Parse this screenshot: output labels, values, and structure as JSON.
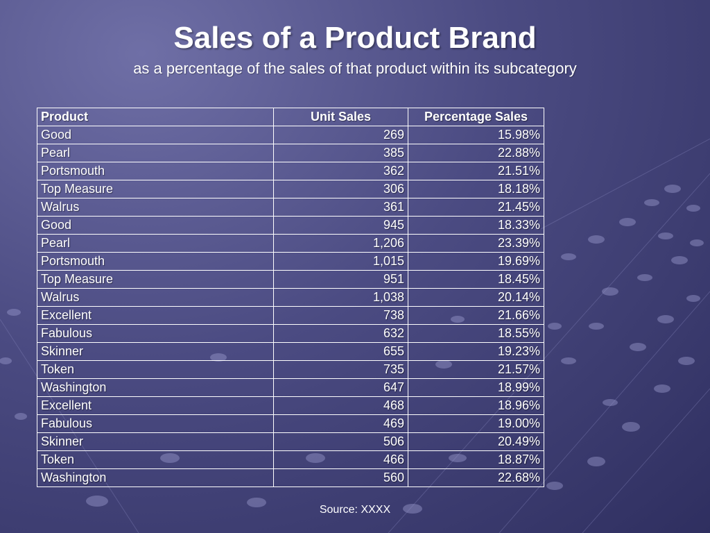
{
  "slide": {
    "title": "Sales of a Product Brand",
    "subtitle": "as a percentage of the sales of that product within its subcategory",
    "source": "Source:  XXXX"
  },
  "table": {
    "headers": [
      "Product",
      "Unit Sales",
      "Percentage Sales"
    ],
    "rows": [
      [
        "Good",
        "269",
        "15.98%"
      ],
      [
        "Pearl",
        "385",
        "22.88%"
      ],
      [
        "Portsmouth",
        "362",
        "21.51%"
      ],
      [
        "Top Measure",
        "306",
        "18.18%"
      ],
      [
        "Walrus",
        "361",
        "21.45%"
      ],
      [
        "Good",
        "945",
        "18.33%"
      ],
      [
        "Pearl",
        "1,206",
        "23.39%"
      ],
      [
        "Portsmouth",
        "1,015",
        "19.69%"
      ],
      [
        "Top Measure",
        "951",
        "18.45%"
      ],
      [
        "Walrus",
        "1,038",
        "20.14%"
      ],
      [
        "Excellent",
        "738",
        "21.66%"
      ],
      [
        "Fabulous",
        "632",
        "18.55%"
      ],
      [
        "Skinner",
        "655",
        "19.23%"
      ],
      [
        "Token",
        "735",
        "21.57%"
      ],
      [
        "Washington",
        "647",
        "18.99%"
      ],
      [
        "Excellent",
        "468",
        "18.96%"
      ],
      [
        "Fabulous",
        "469",
        "19.00%"
      ],
      [
        "Skinner",
        "506",
        "20.49%"
      ],
      [
        "Token",
        "466",
        "18.87%"
      ],
      [
        "Washington",
        "560",
        "22.68%"
      ]
    ]
  },
  "colors": {
    "background": "#4b4b82",
    "text": "#ffffff",
    "grid": "#ffffff"
  }
}
